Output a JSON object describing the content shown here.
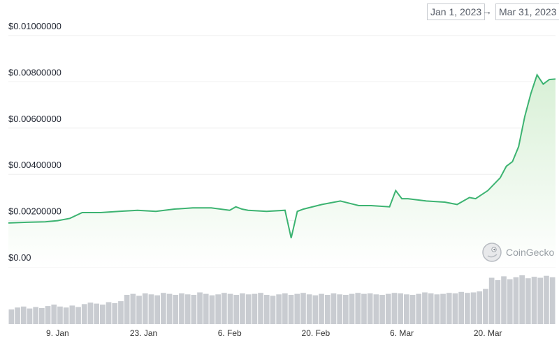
{
  "date_range": {
    "start": "Jan 1, 2023",
    "arrow": "→",
    "end": "Mar 31, 2023"
  },
  "watermark": {
    "text": "CoinGecko",
    "icon": "gecko-logo-icon"
  },
  "colors": {
    "line": "#3cb371",
    "area_top": "#d8f0d6",
    "area_bottom": "#ffffff",
    "volume": "#c9ccd1",
    "grid": "#eeeeee"
  },
  "chart_data": {
    "type": "line",
    "title": "",
    "xlabel": "",
    "ylabel": "",
    "ylim": [
      0,
      0.01
    ],
    "yticks": [
      "$0.00",
      "$0.00200000",
      "$0.00400000",
      "$0.00600000",
      "$0.00800000",
      "$0.01000000"
    ],
    "ytick_values": [
      0,
      0.002,
      0.004,
      0.006,
      0.008,
      0.01
    ],
    "xlim": [
      "2023-01-01",
      "2023-03-31"
    ],
    "xticks": [
      "9. Jan",
      "23. Jan",
      "6. Feb",
      "20. Feb",
      "6. Mar",
      "20. Mar"
    ],
    "xtick_dates": [
      "2023-01-09",
      "2023-01-23",
      "2023-02-06",
      "2023-02-20",
      "2023-03-06",
      "2023-03-20"
    ],
    "grid": true,
    "legend": "none",
    "series": [
      {
        "x": [
          "2023-01-01",
          "2023-01-04",
          "2023-01-07",
          "2023-01-09",
          "2023-01-11",
          "2023-01-13",
          "2023-01-16",
          "2023-01-19",
          "2023-01-22",
          "2023-01-25",
          "2023-01-28",
          "2023-01-31",
          "2023-02-03",
          "2023-02-06",
          "2023-02-07",
          "2023-02-08",
          "2023-02-09",
          "2023-02-12",
          "2023-02-15",
          "2023-02-16",
          "2023-02-17",
          "2023-02-18",
          "2023-02-21",
          "2023-02-24",
          "2023-02-27",
          "2023-03-01",
          "2023-03-04",
          "2023-03-05",
          "2023-03-06",
          "2023-03-07",
          "2023-03-10",
          "2023-03-13",
          "2023-03-15",
          "2023-03-17",
          "2023-03-18",
          "2023-03-20",
          "2023-03-22",
          "2023-03-23",
          "2023-03-24",
          "2023-03-25",
          "2023-03-26",
          "2023-03-27",
          "2023-03-28",
          "2023-03-29",
          "2023-03-30",
          "2023-03-31"
        ],
        "y": [
          0.0019,
          0.00193,
          0.00195,
          0.002,
          0.0021,
          0.00235,
          0.00235,
          0.0024,
          0.00245,
          0.0024,
          0.0025,
          0.00255,
          0.00255,
          0.00245,
          0.0026,
          0.0025,
          0.00245,
          0.0024,
          0.00245,
          0.00125,
          0.0024,
          0.0025,
          0.0027,
          0.00285,
          0.00265,
          0.00265,
          0.0026,
          0.0033,
          0.00295,
          0.00295,
          0.00285,
          0.0028,
          0.0027,
          0.003,
          0.00295,
          0.0033,
          0.00385,
          0.00435,
          0.00455,
          0.0052,
          0.0065,
          0.0075,
          0.0083,
          0.0079,
          0.0081,
          0.00812
        ]
      }
    ],
    "volume": {
      "ylim": [
        0,
        1
      ],
      "values": [
        0.3,
        0.34,
        0.36,
        0.32,
        0.35,
        0.33,
        0.37,
        0.4,
        0.36,
        0.34,
        0.38,
        0.35,
        0.41,
        0.44,
        0.42,
        0.4,
        0.45,
        0.43,
        0.47,
        0.6,
        0.62,
        0.58,
        0.63,
        0.61,
        0.59,
        0.64,
        0.62,
        0.6,
        0.63,
        0.61,
        0.6,
        0.65,
        0.62,
        0.59,
        0.61,
        0.64,
        0.62,
        0.6,
        0.63,
        0.61,
        0.62,
        0.64,
        0.6,
        0.58,
        0.61,
        0.63,
        0.6,
        0.62,
        0.64,
        0.61,
        0.59,
        0.62,
        0.6,
        0.63,
        0.61,
        0.6,
        0.62,
        0.64,
        0.62,
        0.63,
        0.61,
        0.6,
        0.62,
        0.64,
        0.63,
        0.61,
        0.6,
        0.62,
        0.65,
        0.63,
        0.61,
        0.62,
        0.64,
        0.63,
        0.66,
        0.64,
        0.65,
        0.67,
        0.72,
        0.95,
        0.9,
        0.98,
        0.92,
        0.96,
        1.0,
        0.94,
        0.97,
        0.95,
        0.99,
        0.96
      ]
    }
  }
}
